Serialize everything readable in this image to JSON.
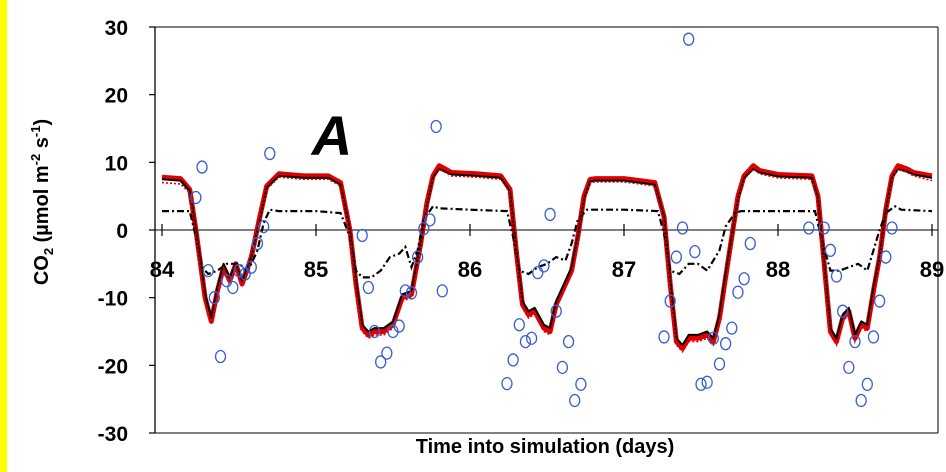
{
  "colors": {
    "accent_strip": "#ffff00",
    "panel_letter": "#1a1aa8",
    "observed": "#3a5fd0",
    "model_red": "#e00000",
    "model_black": "#000000"
  },
  "chart_data": {
    "type": "line",
    "ylabel_main": "CO",
    "ylabel_sub2": "2",
    "ylabel_rest": " (µmol m",
    "ylabel_sup1": "-2",
    "ylabel_mid": " s",
    "ylabel_sup2": "-1",
    "ylabel_end": ")",
    "xlabel": "Time into simulation (days)",
    "annotation": "A",
    "xlim": [
      84,
      89
    ],
    "ylim": [
      -30,
      30
    ],
    "yticks": [
      -30,
      -20,
      -10,
      0,
      10,
      20,
      30
    ],
    "ytick_labels": [
      "-30",
      "-20",
      "-10",
      "0",
      "10",
      "20",
      "30"
    ],
    "xticks": [
      84,
      85,
      86,
      87,
      88,
      89
    ],
    "xtick_labels": [
      "84",
      "85",
      "86",
      "87",
      "88",
      "89"
    ],
    "grid": false,
    "legend": "none",
    "series": [
      {
        "style": "solid-red-outline",
        "color": "#e00000",
        "x": [
          84.0,
          84.12,
          84.18,
          84.22,
          84.28,
          84.32,
          84.36,
          84.4,
          84.44,
          84.48,
          84.52,
          84.58,
          84.64,
          84.68,
          84.76,
          84.92,
          85.08,
          85.16,
          85.22,
          85.26,
          85.3,
          85.34,
          85.38,
          85.44,
          85.5,
          85.56,
          85.62,
          85.68,
          85.72,
          85.76,
          85.8,
          85.84,
          85.88,
          86.04,
          86.2,
          86.26,
          86.3,
          86.34,
          86.38,
          86.42,
          86.48,
          86.52,
          86.56,
          86.6,
          86.66,
          86.7,
          86.74,
          86.78,
          86.82,
          86.86,
          87.0,
          87.2,
          87.26,
          87.3,
          87.34,
          87.38,
          87.42,
          87.48,
          87.54,
          87.58,
          87.62,
          87.66,
          87.7,
          87.74,
          87.78,
          87.84,
          87.88,
          88.0,
          88.22,
          88.26,
          88.3,
          88.34,
          88.38,
          88.42,
          88.46,
          88.5,
          88.54,
          88.58,
          88.62,
          88.66,
          88.7,
          88.74,
          88.78,
          88.84,
          88.88,
          89.0
        ],
        "y": [
          7.8,
          7.6,
          6.0,
          0.0,
          -10.0,
          -13.5,
          -9.0,
          -5.5,
          -7.5,
          -5.0,
          -8.0,
          -4.0,
          2.5,
          6.5,
          8.3,
          8.0,
          8.0,
          7.0,
          0.0,
          -8.0,
          -14.5,
          -15.5,
          -15.0,
          -15.0,
          -14.0,
          -10.0,
          -9.5,
          -2.0,
          4.0,
          8.0,
          9.5,
          9.0,
          8.5,
          8.3,
          8.0,
          6.0,
          -3.0,
          -11.0,
          -12.5,
          -12.0,
          -14.5,
          -15.0,
          -11.0,
          -9.0,
          -6.0,
          -1.0,
          5.0,
          7.5,
          7.6,
          7.6,
          7.6,
          7.0,
          2.0,
          -8.0,
          -16.5,
          -17.5,
          -16.0,
          -16.0,
          -15.5,
          -16.5,
          -13.0,
          -7.0,
          -1.0,
          5.0,
          8.0,
          9.5,
          8.8,
          8.2,
          8.0,
          5.0,
          -5.0,
          -15.0,
          -16.5,
          -13.0,
          -12.0,
          -16.0,
          -14.0,
          -14.5,
          -9.0,
          -4.0,
          3.0,
          8.0,
          9.5,
          9.0,
          8.5,
          8.0
        ]
      },
      {
        "style": "solid-black",
        "color": "#000000",
        "x": [
          84.0,
          84.12,
          84.18,
          84.22,
          84.28,
          84.32,
          84.36,
          84.4,
          84.44,
          84.48,
          84.52,
          84.58,
          84.64,
          84.68,
          84.76,
          84.92,
          85.08,
          85.16,
          85.22,
          85.26,
          85.3,
          85.34,
          85.38,
          85.44,
          85.5,
          85.56,
          85.62,
          85.68,
          85.72,
          85.76,
          85.8,
          85.84,
          85.88,
          86.04,
          86.2,
          86.26,
          86.3,
          86.34,
          86.38,
          86.42,
          86.48,
          86.52,
          86.56,
          86.6,
          86.66,
          86.7,
          86.74,
          86.78,
          86.82,
          86.86,
          87.0,
          87.2,
          87.26,
          87.3,
          87.34,
          87.38,
          87.42,
          87.48,
          87.54,
          87.58,
          87.62,
          87.66,
          87.7,
          87.74,
          87.78,
          87.84,
          87.88,
          88.0,
          88.22,
          88.26,
          88.3,
          88.34,
          88.38,
          88.42,
          88.46,
          88.5,
          88.54,
          88.58,
          88.62,
          88.66,
          88.7,
          88.74,
          88.78,
          88.84,
          88.88,
          89.0
        ],
        "y": [
          7.5,
          7.3,
          5.8,
          0.0,
          -9.5,
          -13.0,
          -8.5,
          -5.0,
          -7.0,
          -5.0,
          -7.5,
          -4.0,
          2.0,
          6.2,
          8.0,
          7.7,
          7.7,
          6.7,
          0.0,
          -7.5,
          -14.0,
          -15.0,
          -14.5,
          -14.5,
          -13.5,
          -9.5,
          -9.0,
          -2.0,
          3.5,
          7.7,
          9.0,
          8.6,
          8.2,
          8.0,
          7.7,
          5.7,
          -3.0,
          -10.5,
          -12.0,
          -11.5,
          -14.0,
          -14.5,
          -10.5,
          -8.5,
          -5.5,
          -1.0,
          4.5,
          7.2,
          7.3,
          7.3,
          7.3,
          6.7,
          2.0,
          -7.5,
          -16.0,
          -17.0,
          -15.5,
          -15.5,
          -15.0,
          -16.0,
          -12.5,
          -6.5,
          -1.0,
          4.5,
          7.7,
          9.0,
          8.5,
          7.9,
          7.7,
          4.7,
          -5.0,
          -14.5,
          -16.0,
          -12.5,
          -11.5,
          -15.5,
          -13.5,
          -14.0,
          -8.5,
          -4.0,
          2.8,
          7.7,
          9.0,
          8.6,
          8.2,
          7.7
        ]
      },
      {
        "style": "dash-dot-black",
        "color": "#000000",
        "x": [
          84.0,
          84.18,
          84.22,
          84.26,
          84.3,
          84.36,
          84.42,
          84.5,
          84.56,
          84.62,
          84.66,
          84.7,
          84.76,
          85.0,
          85.16,
          85.22,
          85.26,
          85.3,
          85.36,
          85.42,
          85.48,
          85.54,
          85.58,
          85.62,
          85.66,
          85.7,
          85.76,
          85.8,
          86.0,
          86.24,
          86.28,
          86.32,
          86.38,
          86.44,
          86.5,
          86.56,
          86.62,
          86.66,
          86.7,
          86.76,
          86.8,
          87.0,
          87.22,
          87.26,
          87.3,
          87.36,
          87.42,
          87.48,
          87.54,
          87.58,
          87.62,
          87.66,
          87.72,
          87.76,
          88.0,
          88.24,
          88.28,
          88.34,
          88.4,
          88.46,
          88.52,
          88.58,
          88.62,
          88.66,
          88.7,
          88.76,
          88.8,
          89.0
        ],
        "y": [
          2.8,
          2.8,
          -1.0,
          -5.5,
          -6.5,
          -6.0,
          -5.0,
          -5.0,
          -6.0,
          -3.0,
          1.0,
          3.0,
          2.8,
          2.8,
          2.5,
          -1.0,
          -6.0,
          -7.0,
          -7.0,
          -6.0,
          -4.0,
          -3.5,
          -2.5,
          -5.5,
          -3.0,
          1.5,
          3.5,
          3.2,
          3.0,
          2.8,
          -1.0,
          -6.0,
          -6.5,
          -5.5,
          -5.0,
          -4.0,
          -4.5,
          -2.0,
          1.5,
          3.0,
          3.0,
          3.0,
          2.8,
          -0.5,
          -6.0,
          -6.5,
          -5.0,
          -5.0,
          -6.0,
          -4.5,
          -3.0,
          0.5,
          2.5,
          2.8,
          2.8,
          2.8,
          -1.0,
          -6.0,
          -6.0,
          -5.5,
          -5.0,
          -6.0,
          -3.0,
          0.0,
          2.5,
          3.5,
          3.0,
          2.8
        ]
      },
      {
        "style": "dotted-red",
        "color": "#e00000",
        "x": [
          84.0,
          84.12,
          84.18,
          84.22,
          84.28,
          84.32,
          84.36,
          84.4,
          84.44,
          84.48,
          84.52,
          84.58,
          84.64,
          84.68,
          84.76,
          84.92,
          85.08,
          85.16,
          85.22,
          85.26,
          85.3,
          85.34,
          85.38,
          85.44,
          85.5,
          85.56,
          85.62,
          85.68,
          85.72,
          85.76,
          85.8,
          85.84,
          85.88,
          86.04,
          86.2,
          86.26,
          86.3,
          86.34,
          86.38,
          86.42,
          86.48,
          86.52,
          86.56,
          86.6,
          86.66,
          86.7,
          86.74,
          86.78,
          86.82,
          86.86,
          87.0,
          87.2,
          87.26,
          87.3,
          87.34,
          87.38,
          87.42,
          87.48,
          87.54,
          87.58,
          87.62,
          87.66,
          87.7,
          87.74,
          87.78,
          87.84,
          87.88,
          88.0,
          88.22,
          88.26,
          88.3,
          88.34,
          88.38,
          88.42,
          88.46,
          88.5,
          88.54,
          88.58,
          88.62,
          88.66,
          88.7,
          88.74,
          88.78,
          88.84,
          88.88,
          89.0
        ],
        "y": [
          7.0,
          6.8,
          5.5,
          -0.5,
          -10.5,
          -13.8,
          -9.3,
          -5.7,
          -7.8,
          -5.3,
          -8.3,
          -4.3,
          2.0,
          6.0,
          7.8,
          7.5,
          7.5,
          6.5,
          -0.5,
          -8.5,
          -15.0,
          -16.0,
          -15.5,
          -15.5,
          -14.5,
          -10.5,
          -10.0,
          -2.5,
          3.5,
          7.5,
          9.0,
          8.5,
          8.0,
          7.8,
          7.5,
          5.5,
          -3.5,
          -11.5,
          -13.0,
          -12.5,
          -15.0,
          -15.5,
          -11.5,
          -9.5,
          -6.5,
          -1.5,
          4.5,
          7.0,
          7.1,
          7.1,
          7.1,
          6.5,
          1.5,
          -8.5,
          -17.0,
          -18.0,
          -16.5,
          -16.5,
          -16.0,
          -17.0,
          -13.5,
          -7.5,
          -1.5,
          4.5,
          7.5,
          9.0,
          8.3,
          7.7,
          7.5,
          4.5,
          -5.5,
          -15.5,
          -17.0,
          -13.5,
          -12.5,
          -16.5,
          -14.5,
          -15.0,
          -9.5,
          -4.5,
          2.5,
          7.5,
          9.0,
          8.5,
          8.0,
          7.3
        ]
      },
      {
        "style": "open-circles",
        "color": "#3a5fd0",
        "x": [
          84.22,
          84.26,
          84.3,
          84.34,
          84.38,
          84.42,
          84.46,
          84.5,
          84.54,
          84.58,
          84.62,
          84.66,
          84.7,
          85.3,
          85.34,
          85.38,
          85.42,
          85.46,
          85.5,
          85.54,
          85.58,
          85.62,
          85.66,
          85.7,
          85.74,
          85.78,
          85.82,
          86.24,
          86.28,
          86.32,
          86.36,
          86.4,
          86.44,
          86.48,
          86.52,
          86.56,
          86.6,
          86.64,
          86.68,
          86.72,
          87.26,
          87.3,
          87.34,
          87.38,
          87.42,
          87.46,
          87.5,
          87.54,
          87.58,
          87.62,
          87.66,
          87.7,
          87.74,
          87.78,
          87.82,
          88.2,
          88.3,
          88.34,
          88.38,
          88.42,
          88.46,
          88.5,
          88.54,
          88.58,
          88.62,
          88.66,
          88.7,
          88.74
        ],
        "y": [
          4.8,
          9.3,
          -6.0,
          -10.0,
          -18.7,
          -7.5,
          -8.5,
          -6.0,
          -6.5,
          -5.5,
          -2.0,
          0.5,
          11.3,
          -0.8,
          -8.5,
          -15.0,
          -19.5,
          -18.2,
          -15.0,
          -14.2,
          -9.0,
          -9.3,
          -4.0,
          0.2,
          1.5,
          15.3,
          -9.0,
          -22.7,
          -19.2,
          -14.0,
          -16.5,
          -16.0,
          -6.3,
          -5.3,
          2.3,
          -12.0,
          -20.3,
          -16.5,
          -25.2,
          -22.8,
          -15.8,
          -10.5,
          -4.0,
          0.3,
          28.2,
          -3.2,
          -22.8,
          -22.5,
          -16.0,
          -19.8,
          -16.8,
          -14.5,
          -9.2,
          -7.2,
          -2.0,
          0.3,
          0.3,
          -3.0,
          -6.8,
          -12.0,
          -20.3,
          -16.5,
          -25.2,
          -22.8,
          -15.8,
          -10.5,
          -4.0,
          0.3
        ]
      }
    ]
  }
}
